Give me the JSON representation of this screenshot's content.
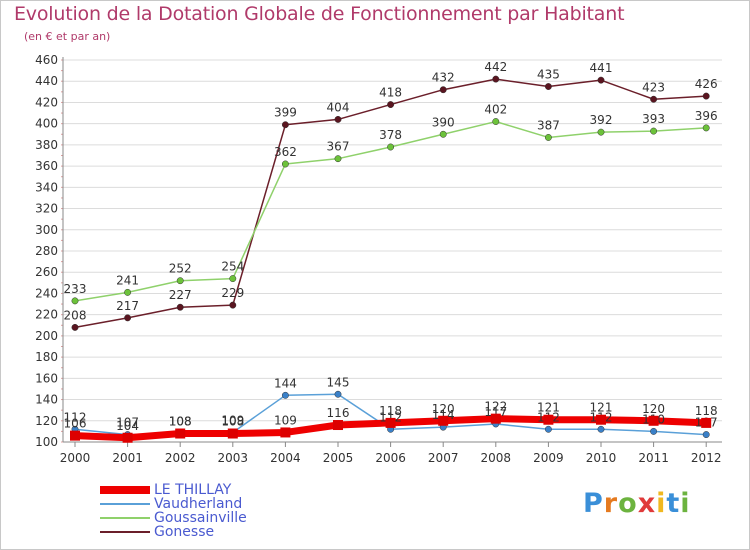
{
  "header": {
    "title": "Evolution de la Dotation Globale de Fonctionnement par Habitant",
    "subtitle": "(en € et par an)"
  },
  "brand": {
    "text": "Proxiti",
    "colors": [
      "#3a8fd8",
      "#e57a1f",
      "#6cb33f",
      "#e03a3a",
      "#f0b820",
      "#3a8fd8",
      "#6cb33f"
    ]
  },
  "chart_data": {
    "type": "line",
    "title": "Evolution de la Dotation Globale de Fonctionnement par Habitant",
    "subtitle": "(en € et par an)",
    "xlabel": "",
    "ylabel": "",
    "ylim": [
      100,
      460
    ],
    "grid": "horizontal",
    "legend_position": "bottom-left",
    "x": [
      "2000",
      "2001",
      "2002",
      "2003",
      "2004",
      "2005",
      "2006",
      "2007",
      "2008",
      "2009",
      "2010",
      "2011",
      "2012"
    ],
    "y_ticks": [
      100,
      120,
      140,
      160,
      180,
      200,
      220,
      240,
      260,
      280,
      300,
      320,
      340,
      360,
      380,
      400,
      420,
      440,
      460
    ],
    "series": [
      {
        "name": "Gonesse",
        "color": "#6b1f2a",
        "marker": "#5a1520",
        "width": 1.5,
        "values": [
          208,
          217,
          227,
          229,
          399,
          404,
          418,
          432,
          442,
          435,
          441,
          423,
          426
        ],
        "labels": [
          "208",
          "217",
          "227",
          "229",
          "399",
          "404",
          "418",
          "432",
          "442",
          "435",
          "441",
          "423",
          "426"
        ]
      },
      {
        "name": "Goussainville",
        "color": "#8fd16b",
        "marker": "#6cc23a",
        "width": 1.5,
        "values": [
          233,
          241,
          252,
          254,
          362,
          367,
          378,
          390,
          402,
          387,
          392,
          393,
          396
        ],
        "labels": [
          "233",
          "241",
          "252",
          "254",
          "362",
          "367",
          "378",
          "390",
          "402",
          "387",
          "392",
          "393",
          "396"
        ]
      },
      {
        "name": "Vaudherland",
        "color": "#5aa0d8",
        "marker": "#3a80c8",
        "width": 1.5,
        "values": [
          112,
          107,
          108,
          109,
          144,
          145,
          112,
          114,
          117,
          112,
          112,
          110,
          107
        ],
        "labels": [
          "112",
          "107",
          "108",
          "109",
          "144",
          "145",
          "112",
          "114",
          "117",
          "112",
          "112",
          "110",
          "107"
        ]
      },
      {
        "name": "LE THILLAY",
        "color": "#ee0000",
        "marker": "#dd0000",
        "width": 7,
        "values": [
          106,
          104,
          108,
          108,
          109,
          116,
          118,
          120,
          122,
          121,
          121,
          120,
          118
        ],
        "labels": [
          "106",
          "104",
          "108",
          "108",
          "109",
          "116",
          "118",
          "120",
          "122",
          "121",
          "121",
          "120",
          "118"
        ]
      }
    ],
    "legend_order": [
      "LE THILLAY",
      "Vaudherland",
      "Goussainville",
      "Gonesse"
    ]
  }
}
